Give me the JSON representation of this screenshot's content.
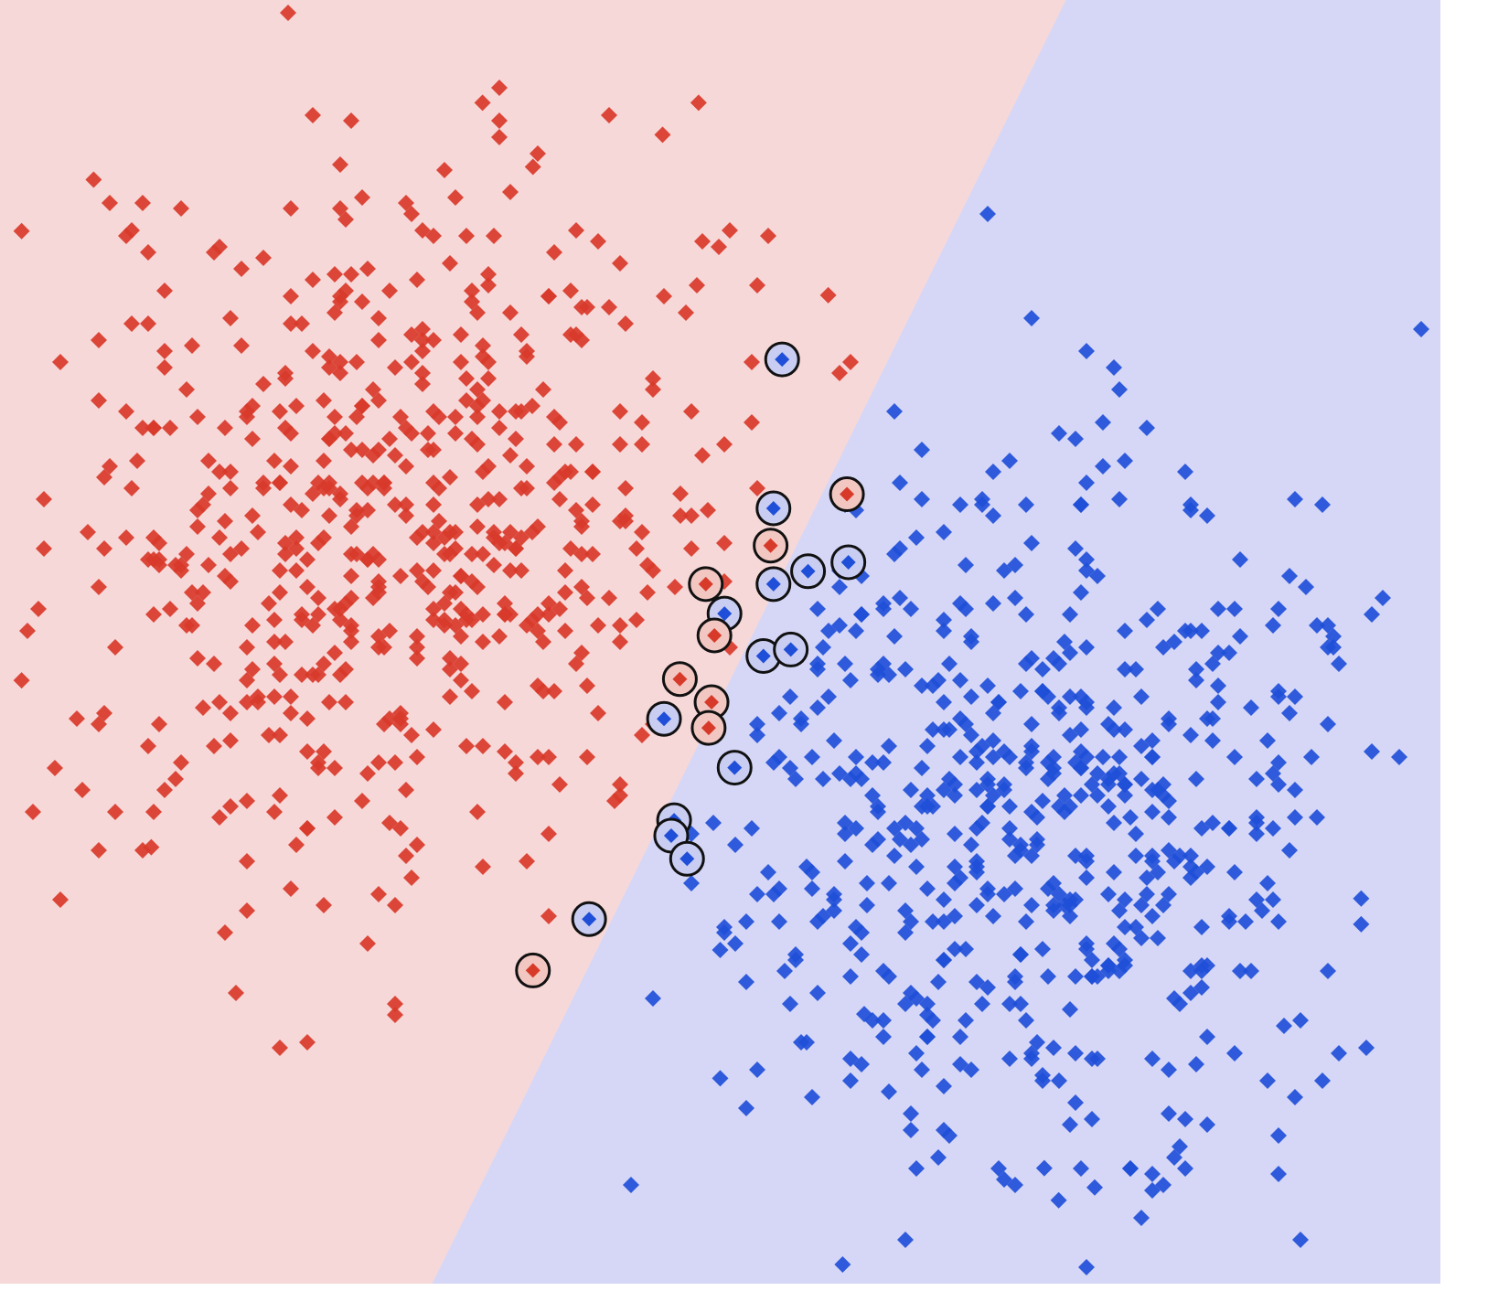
{
  "chart_data": {
    "type": "scatter",
    "title": "",
    "xlabel": "",
    "ylabel": "",
    "xlim": [
      0,
      1
    ],
    "ylim": [
      0,
      1
    ],
    "grid": false,
    "legend": "none",
    "colors": {
      "region_class_0": "#f7d8d8",
      "region_class_1": "#d6d7f7",
      "class_0": "#d83a2a",
      "class_1": "#1f4fd8",
      "support_vector_ring": "#111111"
    },
    "decision_boundary": {
      "type": "linear",
      "points": [
        [
          0.3,
          0.0
        ],
        [
          0.74,
          1.0
        ]
      ]
    },
    "clusters": [
      {
        "class": 0,
        "center": [
          0.28,
          0.58
        ],
        "std": [
          0.12,
          0.14
        ],
        "count": 560,
        "seed": 7
      },
      {
        "class": 1,
        "center": [
          0.72,
          0.37
        ],
        "std": [
          0.12,
          0.14
        ],
        "count": 560,
        "seed": 13
      }
    ],
    "series": [
      {
        "class": 0,
        "outliers": [
          [
            0.2,
            0.99
          ],
          [
            0.065,
            0.86
          ],
          [
            0.015,
            0.82
          ],
          [
            0.335,
            0.92
          ],
          [
            0.485,
            0.92
          ],
          [
            0.46,
            0.895
          ],
          [
            0.015,
            0.47
          ],
          [
            0.105,
            0.34
          ],
          [
            0.575,
            0.77
          ],
          [
            0.37,
            0.87
          ]
        ]
      },
      {
        "class": 1,
        "outliers": [
          [
            0.585,
            0.015
          ],
          [
            0.945,
            0.3
          ],
          [
            0.945,
            0.28
          ],
          [
            0.725,
            0.09
          ],
          [
            0.735,
            0.065
          ],
          [
            0.76,
            0.075
          ],
          [
            0.5,
            0.16
          ],
          [
            0.6,
            0.21
          ],
          [
            0.5,
            0.26
          ]
        ]
      }
    ],
    "support_vectors": [
      {
        "x": 0.543,
        "y": 0.72,
        "class": 1
      },
      {
        "x": 0.588,
        "y": 0.615,
        "class": 0
      },
      {
        "x": 0.537,
        "y": 0.604,
        "class": 1
      },
      {
        "x": 0.535,
        "y": 0.575,
        "class": 0
      },
      {
        "x": 0.561,
        "y": 0.555,
        "class": 1
      },
      {
        "x": 0.589,
        "y": 0.562,
        "class": 1
      },
      {
        "x": 0.537,
        "y": 0.545,
        "class": 1
      },
      {
        "x": 0.49,
        "y": 0.545,
        "class": 0
      },
      {
        "x": 0.503,
        "y": 0.522,
        "class": 1
      },
      {
        "x": 0.496,
        "y": 0.505,
        "class": 0
      },
      {
        "x": 0.53,
        "y": 0.489,
        "class": 1
      },
      {
        "x": 0.549,
        "y": 0.494,
        "class": 1
      },
      {
        "x": 0.472,
        "y": 0.471,
        "class": 0
      },
      {
        "x": 0.461,
        "y": 0.44,
        "class": 1
      },
      {
        "x": 0.494,
        "y": 0.453,
        "class": 0
      },
      {
        "x": 0.492,
        "y": 0.433,
        "class": 0
      },
      {
        "x": 0.51,
        "y": 0.402,
        "class": 1
      },
      {
        "x": 0.468,
        "y": 0.361,
        "class": 1
      },
      {
        "x": 0.466,
        "y": 0.349,
        "class": 1
      },
      {
        "x": 0.477,
        "y": 0.331,
        "class": 1
      },
      {
        "x": 0.409,
        "y": 0.284,
        "class": 1
      },
      {
        "x": 0.37,
        "y": 0.244,
        "class": 0
      }
    ]
  }
}
